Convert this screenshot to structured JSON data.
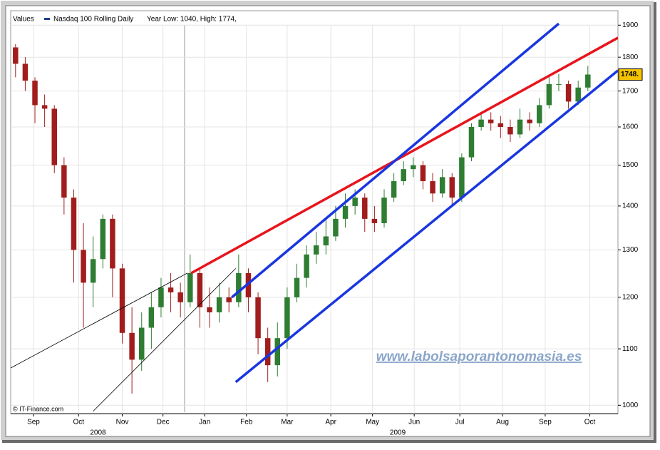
{
  "chart_data": {
    "type": "candlestick",
    "legend_label": "Values",
    "series_name": "Nasdaq 100 Rolling Daily",
    "subtitle": "Year Low: 1040, High: 1774,",
    "watermark": "www.labolsaporantonomasia.es",
    "credit": "© IT-Finance.com",
    "log_scale": true,
    "grid": true,
    "up_color": "#2e7d32",
    "down_color": "#a11d1d",
    "line_color": "#1f3f8f",
    "x": [
      0.5,
      1.5,
      2.5,
      3.5,
      4.5,
      5.5,
      6.5,
      7.5,
      8.5,
      9.5,
      10.5,
      11.5,
      12.5,
      13.5,
      14.5,
      15.5,
      16.5,
      17.5,
      18.5,
      19.5,
      20.5,
      21.5,
      22.5,
      23.5,
      24.5,
      25.5,
      26.5,
      27.5,
      28.5,
      29.5,
      30.5,
      31.5,
      32.5,
      33.5,
      34.5,
      35.5,
      36.5,
      37.5,
      38.5,
      39.5,
      40.5,
      41.5,
      42.5,
      43.5,
      44.5,
      45.5,
      46.5,
      47.5,
      48.5,
      49.5,
      50.5,
      51.5,
      52.5,
      53.5,
      54.5,
      55.5,
      56.5,
      57.5,
      58.5,
      59.5
    ],
    "open": [
      1830,
      1780,
      1730,
      1660,
      1650,
      1500,
      1420,
      1300,
      1230,
      1280,
      1370,
      1260,
      1130,
      1080,
      1140,
      1180,
      1220,
      1210,
      1190,
      1250,
      1180,
      1170,
      1200,
      1190,
      1250,
      1200,
      1120,
      1070,
      1120,
      1200,
      1240,
      1290,
      1310,
      1330,
      1370,
      1400,
      1420,
      1370,
      1360,
      1420,
      1460,
      1490,
      1500,
      1460,
      1430,
      1470,
      1420,
      1520,
      1600,
      1620,
      1610,
      1600,
      1580,
      1620,
      1610,
      1660,
      1720,
      1720,
      1670,
      1710
    ],
    "high": [
      1840,
      1800,
      1740,
      1690,
      1660,
      1520,
      1440,
      1360,
      1330,
      1380,
      1380,
      1270,
      1180,
      1170,
      1210,
      1240,
      1250,
      1230,
      1290,
      1260,
      1220,
      1230,
      1220,
      1290,
      1260,
      1210,
      1140,
      1150,
      1220,
      1270,
      1310,
      1340,
      1370,
      1400,
      1430,
      1440,
      1430,
      1400,
      1440,
      1480,
      1510,
      1520,
      1510,
      1480,
      1490,
      1480,
      1530,
      1610,
      1640,
      1640,
      1630,
      1620,
      1650,
      1640,
      1680,
      1740,
      1750,
      1730,
      1730,
      1774
    ],
    "low": [
      1740,
      1700,
      1610,
      1600,
      1480,
      1380,
      1230,
      1140,
      1180,
      1260,
      1200,
      1110,
      1020,
      1060,
      1100,
      1160,
      1170,
      1160,
      1180,
      1140,
      1140,
      1150,
      1170,
      1180,
      1170,
      1090,
      1040,
      1050,
      1100,
      1190,
      1220,
      1270,
      1290,
      1320,
      1350,
      1380,
      1340,
      1340,
      1350,
      1410,
      1450,
      1470,
      1440,
      1410,
      1420,
      1400,
      1410,
      1510,
      1590,
      1590,
      1570,
      1560,
      1570,
      1590,
      1600,
      1650,
      1700,
      1650,
      1660,
      1700
    ],
    "close": [
      1780,
      1730,
      1660,
      1650,
      1500,
      1420,
      1300,
      1230,
      1280,
      1370,
      1260,
      1130,
      1080,
      1140,
      1180,
      1220,
      1210,
      1190,
      1250,
      1180,
      1170,
      1200,
      1190,
      1250,
      1200,
      1120,
      1070,
      1120,
      1200,
      1240,
      1290,
      1310,
      1330,
      1370,
      1400,
      1420,
      1370,
      1360,
      1420,
      1460,
      1490,
      1500,
      1460,
      1430,
      1470,
      1420,
      1520,
      1600,
      1620,
      1610,
      1600,
      1580,
      1620,
      1610,
      1660,
      1720,
      1720,
      1670,
      1710,
      1748
    ],
    "last_price": {
      "value": 1748,
      "label": "1748."
    },
    "trendlines": [
      {
        "color": "#e8141c",
        "x": [
          18.6,
          62.6
        ],
        "y": [
          1250,
          1860
        ]
      },
      {
        "color": "#1936e0",
        "x": [
          22.8,
          56.5
        ],
        "y": [
          1200,
          1905
        ]
      },
      {
        "color": "#1936e0",
        "x": [
          23.2,
          62.6
        ],
        "y": [
          1040,
          1760
        ]
      },
      {
        "color": "#000000",
        "x": [
          0,
          18.2
        ],
        "y": [
          1065,
          1250
        ]
      },
      {
        "color": "#000000",
        "x": [
          8.5,
          23.2
        ],
        "y": [
          990,
          1260
        ]
      }
    ],
    "xlim": [
      0,
      62.6
    ],
    "xticks": [
      {
        "value": 2.35,
        "label": "Sep"
      },
      {
        "value": 7,
        "label": "Oct"
      },
      {
        "value": 11.5,
        "label": "Nov"
      },
      {
        "value": 15.7,
        "label": "Dec"
      },
      {
        "value": 20,
        "label": "Jan"
      },
      {
        "value": 24.3,
        "label": "Feb"
      },
      {
        "value": 28.5,
        "label": "Mar"
      },
      {
        "value": 33,
        "label": "Apr"
      },
      {
        "value": 37.3,
        "label": "May"
      },
      {
        "value": 41.6,
        "label": "Jun"
      },
      {
        "value": 46.3,
        "label": "Jul"
      },
      {
        "value": 50.7,
        "label": "Aug"
      },
      {
        "value": 55.1,
        "label": "Sep"
      },
      {
        "value": 59.7,
        "label": "Oct"
      }
    ],
    "years": [
      {
        "x": 9,
        "label": "2008"
      },
      {
        "x": 39.9,
        "label": "2009"
      }
    ],
    "ylim": [
      986,
      1947
    ],
    "yticks": [
      1000,
      1100,
      1200,
      1300,
      1400,
      1500,
      1600,
      1700,
      1800,
      1900
    ]
  }
}
